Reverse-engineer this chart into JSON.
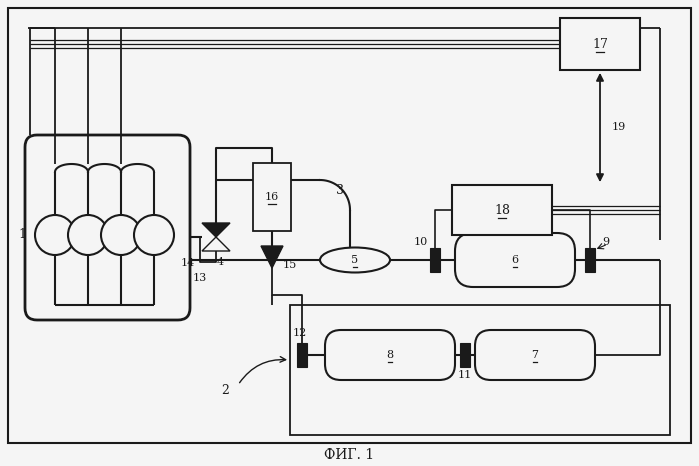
{
  "title": "ФИГ. 1",
  "bg": "#f5f5f5",
  "lc": "#1a1a1a",
  "figsize": [
    6.99,
    4.66
  ],
  "dpi": 100
}
